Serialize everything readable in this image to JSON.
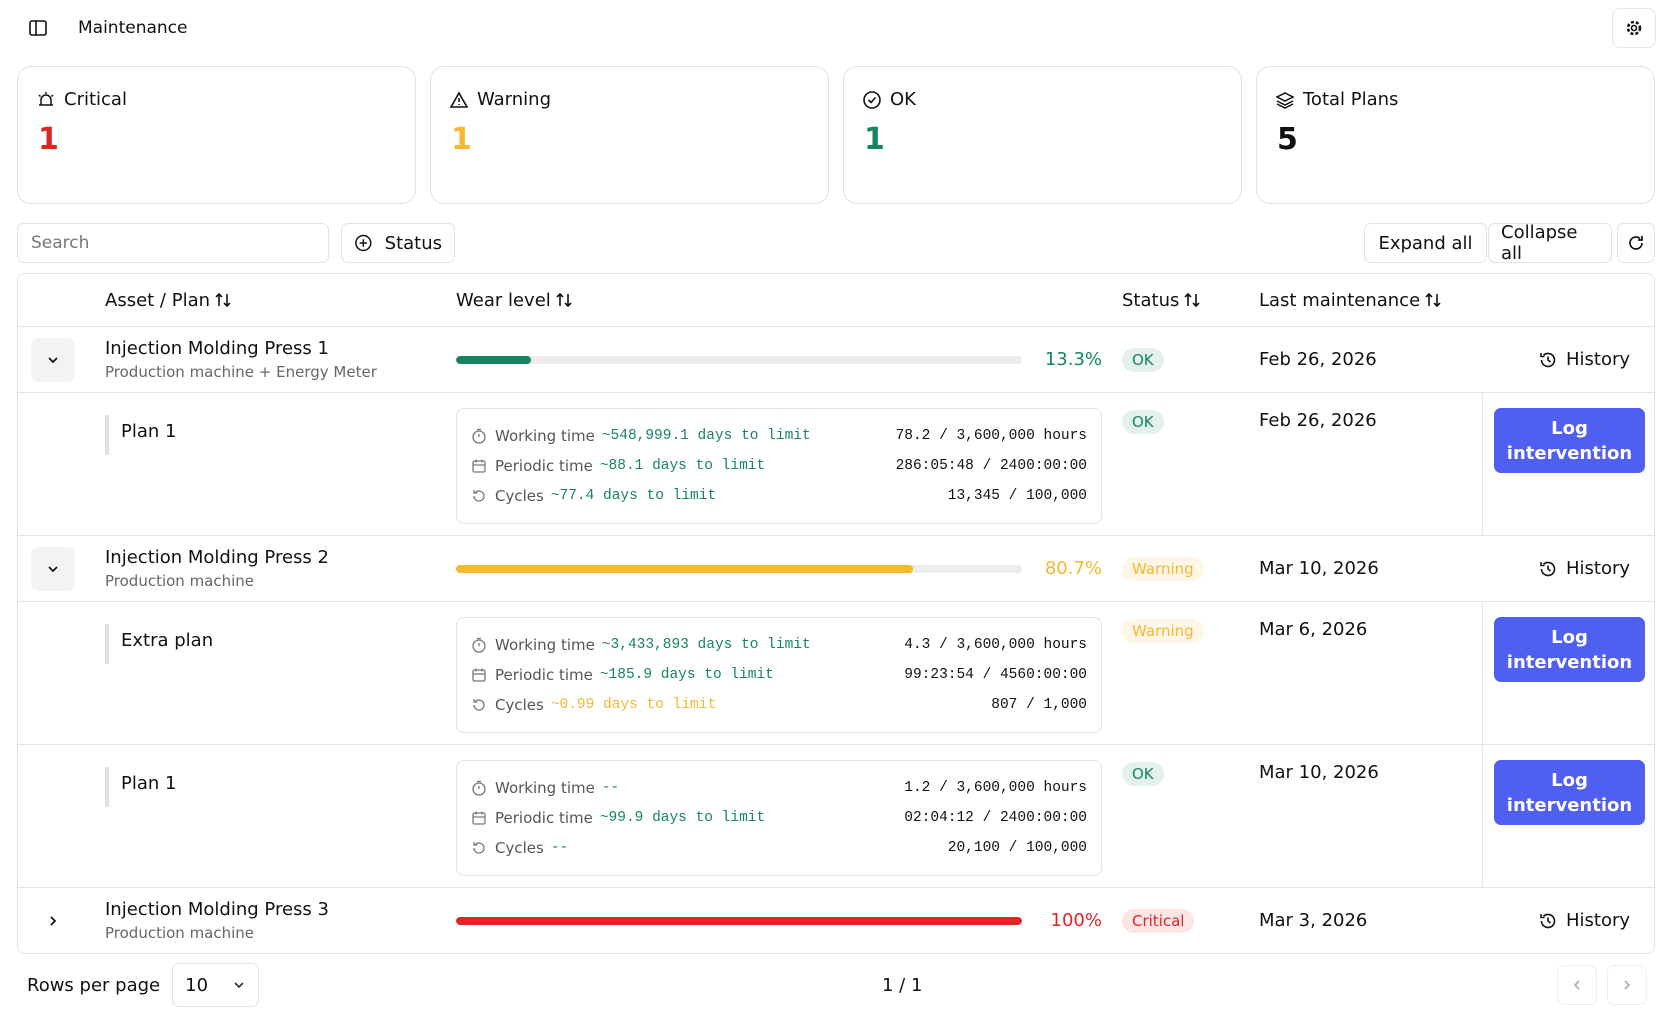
{
  "header": {
    "title": "Maintenance"
  },
  "cards": [
    {
      "label": "Critical",
      "value": 1,
      "color": "#dc2626"
    },
    {
      "label": "Warning",
      "value": 1,
      "color": "#f5b82e"
    },
    {
      "label": "OK",
      "value": 1,
      "color": "#16855f"
    },
    {
      "label": "Total Plans",
      "value": 5,
      "color": "#111111"
    }
  ],
  "toolbar": {
    "search_placeholder": "Search",
    "status_filter": "Status",
    "expand": "Expand all",
    "collapse": "Collapse all"
  },
  "table": {
    "columns": [
      "Asset / Plan",
      "Wear level",
      "Status",
      "Last maintenance"
    ],
    "assets": [
      {
        "name": "Injection Molding Press 1",
        "subtitle": "Production machine + Energy Meter",
        "expanded": true,
        "wear": 13.3,
        "wear_label": "13.3%",
        "color": "#16855f",
        "status": "OK",
        "last": "Feb 26, 2026",
        "action": "History",
        "plans": [
          {
            "name": "Plan 1",
            "status": "OK",
            "color": "#16855f",
            "last": "Feb 26, 2026",
            "action": "Log intervention",
            "metrics": [
              {
                "label": "Working time",
                "eta": "~548,999.1 days to limit",
                "color": "#16855f",
                "usage": "78.2 / 3,600,000 hours"
              },
              {
                "label": "Periodic time",
                "eta": "~88.1 days to limit",
                "color": "#16855f",
                "usage": "286:05:48 / 2400:00:00"
              },
              {
                "label": "Cycles",
                "eta": "~77.4 days to limit",
                "color": "#16855f",
                "usage": "13,345 / 100,000"
              }
            ]
          }
        ]
      },
      {
        "name": "Injection Molding Press 2",
        "subtitle": "Production machine",
        "expanded": true,
        "wear": 80.7,
        "wear_label": "80.7%",
        "color": "#f5b82e",
        "status": "Warning",
        "last": "Mar 10, 2026",
        "action": "History",
        "plans": [
          {
            "name": "Extra plan",
            "status": "Warning",
            "color": "#f5b82e",
            "last": "Mar 6, 2026",
            "action": "Log intervention",
            "metrics": [
              {
                "label": "Working time",
                "eta": "~3,433,893 days to limit",
                "color": "#16855f",
                "usage": "4.3 / 3,600,000 hours"
              },
              {
                "label": "Periodic time",
                "eta": "~185.9 days to limit",
                "color": "#16855f",
                "usage": "99:23:54 / 4560:00:00"
              },
              {
                "label": "Cycles",
                "eta": "~0.99 days to limit",
                "color": "#f5b82e",
                "usage": "807 / 1,000"
              }
            ]
          },
          {
            "name": "Plan 1",
            "status": "OK",
            "color": "#16855f",
            "last": "Mar 10, 2026",
            "action": "Log intervention",
            "metrics": [
              {
                "label": "Working time",
                "eta": "--",
                "color": "#16855f",
                "usage": "1.2 / 3,600,000 hours"
              },
              {
                "label": "Periodic time",
                "eta": "~99.9 days to limit",
                "color": "#16855f",
                "usage": "02:04:12 / 2400:00:00"
              },
              {
                "label": "Cycles",
                "eta": "--",
                "color": "#16855f",
                "usage": "20,100 / 100,000"
              }
            ]
          }
        ]
      },
      {
        "name": "Injection Molding Press 3",
        "subtitle": "Production machine",
        "expanded": false,
        "wear": 100,
        "wear_label": "100%",
        "color": "#dc2626",
        "status": "Critical",
        "last": "Mar 3, 2026",
        "action": "History",
        "plans": []
      }
    ]
  },
  "footer": {
    "rows_label": "Rows per page",
    "rows": "10",
    "page": "1 / 1"
  }
}
